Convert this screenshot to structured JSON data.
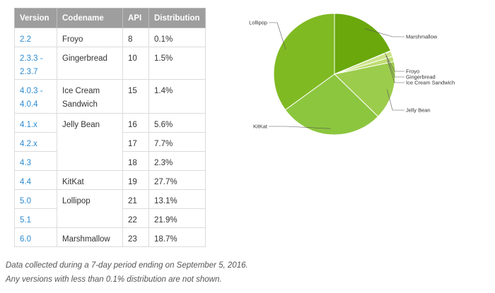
{
  "table": {
    "headers": [
      "Version",
      "Codename",
      "API",
      "Distribution"
    ],
    "rows": [
      {
        "version": "2.2",
        "codename": "Froyo",
        "api": "8",
        "distribution": "0.1%"
      },
      {
        "version": "2.3.3 - 2.3.7",
        "codename": "Gingerbread",
        "api": "10",
        "distribution": "1.5%"
      },
      {
        "version": "4.0.3 - 4.0.4",
        "codename": "Ice Cream Sandwich",
        "api": "15",
        "distribution": "1.4%"
      },
      {
        "version": "4.1.x",
        "codename": "Jelly Bean",
        "api": "16",
        "distribution": "5.6%"
      },
      {
        "version": "4.2.x",
        "codename": "",
        "api": "17",
        "distribution": "7.7%"
      },
      {
        "version": "4.3",
        "codename": "",
        "api": "18",
        "distribution": "2.3%"
      },
      {
        "version": "4.4",
        "codename": "KitKat",
        "api": "19",
        "distribution": "27.7%"
      },
      {
        "version": "5.0",
        "codename": "Lollipop",
        "api": "21",
        "distribution": "13.1%"
      },
      {
        "version": "5.1",
        "codename": "",
        "api": "22",
        "distribution": "21.9%"
      },
      {
        "version": "6.0",
        "codename": "Marshmallow",
        "api": "23",
        "distribution": "18.7%"
      }
    ]
  },
  "notes": {
    "line1": "Data collected during a 7-day period ending on September 5, 2016.",
    "line2": "Any versions with less than 0.1% distribution are not shown."
  },
  "chart_data": {
    "type": "pie",
    "slices": [
      {
        "label": "Marshmallow",
        "value": 18.7,
        "color": "#6aa80c"
      },
      {
        "label": "Froyo",
        "value": 0.1,
        "color": "#dbeaa8"
      },
      {
        "label": "Gingerbread",
        "value": 1.5,
        "color": "#cde48a"
      },
      {
        "label": "Ice Cream Sandwich",
        "value": 1.4,
        "color": "#bedd70"
      },
      {
        "label": "Jelly Bean",
        "value": 15.6,
        "color": "#9ccc4c"
      },
      {
        "label": "KitKat",
        "value": 27.7,
        "color": "#8cc63e"
      },
      {
        "label": "Lollipop",
        "value": 35.0,
        "color": "#80ba22"
      }
    ],
    "start_angle_deg": 0,
    "direction": "clockwise",
    "label_placement": "outside with leader lines"
  }
}
